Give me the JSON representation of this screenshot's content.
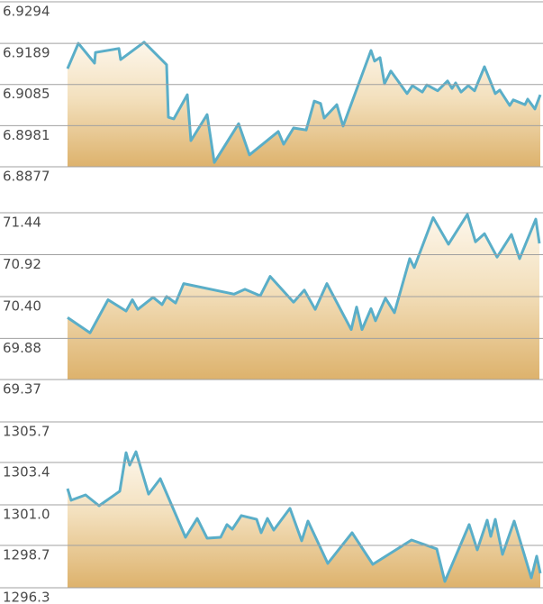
{
  "chart_data": [
    {
      "type": "area",
      "x": [
        0,
        12,
        30,
        31,
        57,
        59,
        85,
        110,
        112,
        118,
        133,
        137,
        155,
        163,
        190,
        202,
        234,
        240,
        251,
        265,
        274,
        281,
        285,
        299,
        306,
        337,
        341,
        347,
        352,
        359,
        377,
        383,
        394,
        399,
        411,
        422,
        427,
        431,
        437,
        445,
        452,
        463,
        475,
        480,
        491,
        495,
        508,
        511,
        519,
        525
      ],
      "values": [
        6.9125,
        6.9189,
        6.9139,
        6.9166,
        6.9176,
        6.9148,
        6.9192,
        6.9135,
        6.9002,
        6.8998,
        6.9059,
        6.8943,
        6.9009,
        6.8888,
        6.8986,
        6.8907,
        6.8966,
        6.8934,
        6.8975,
        6.897,
        6.9043,
        6.9037,
        6.9,
        6.9034,
        6.898,
        6.9171,
        6.9144,
        6.9153,
        6.9087,
        6.9119,
        6.9062,
        6.9082,
        6.9066,
        6.9084,
        6.9069,
        6.9094,
        6.9075,
        6.9089,
        6.9066,
        6.9082,
        6.9069,
        6.913,
        6.9062,
        6.9071,
        6.9032,
        6.9046,
        6.9034,
        6.9048,
        6.9023,
        6.9059
      ],
      "color": "#5aaec8",
      "xlim": [
        0,
        525
      ],
      "ylim": [
        6.8877,
        6.9294
      ],
      "yticks": [
        6.9294,
        6.9189,
        6.9085,
        6.8981,
        6.8877
      ],
      "grid": true
    },
    {
      "type": "area",
      "x": [
        0,
        25,
        45,
        65,
        72,
        78,
        95,
        105,
        110,
        120,
        129,
        185,
        197,
        214,
        225,
        251,
        263,
        275,
        288,
        315,
        321,
        327,
        337,
        342,
        353,
        363,
        380,
        385,
        406,
        423,
        444,
        453,
        463,
        477,
        493,
        502,
        520,
        524
      ],
      "values": [
        70.14,
        69.95,
        70.36,
        70.22,
        70.36,
        70.24,
        70.39,
        70.3,
        70.4,
        70.32,
        70.56,
        70.43,
        70.49,
        70.41,
        70.65,
        70.33,
        70.48,
        70.24,
        70.56,
        69.99,
        70.27,
        69.99,
        70.25,
        70.1,
        70.38,
        70.2,
        70.87,
        70.76,
        71.38,
        71.05,
        71.42,
        71.08,
        71.18,
        70.89,
        71.17,
        70.87,
        71.36,
        71.06
      ],
      "color": "#5aaec8",
      "xlim": [
        0,
        525
      ],
      "ylim": [
        69.37,
        71.44
      ],
      "yticks": [
        71.44,
        70.92,
        {
          "value": 70.4,
          "label": "70.40"
        },
        69.88,
        69.37
      ],
      "grid": true
    },
    {
      "type": "area",
      "x": [
        0,
        4,
        20,
        35,
        58,
        65,
        69,
        76,
        90,
        103,
        131,
        144,
        155,
        170,
        177,
        183,
        193,
        210,
        215,
        222,
        229,
        247,
        260,
        267,
        289,
        316,
        339,
        382,
        410,
        419,
        446,
        455,
        466,
        470,
        475,
        483,
        496,
        515,
        521,
        525
      ],
      "values": [
        1301.92,
        1301.26,
        1301.56,
        1300.95,
        1301.77,
        1303.96,
        1303.25,
        1304.01,
        1301.61,
        1302.48,
        1299.16,
        1300.23,
        1299.11,
        1299.16,
        1299.88,
        1299.62,
        1300.39,
        1300.18,
        1299.42,
        1300.23,
        1299.57,
        1300.8,
        1298.96,
        1300.08,
        1297.68,
        1299.42,
        1297.63,
        1299.01,
        1298.5,
        1296.66,
        1299.88,
        1298.45,
        1300.13,
        1299.21,
        1300.18,
        1298.19,
        1300.08,
        1296.86,
        1298.09,
        1297.12
      ],
      "color": "#5aaec8",
      "xlim": [
        0,
        525
      ],
      "ylim": [
        1296.3,
        1305.7
      ],
      "yticks": [
        1305.7,
        1303.4,
        {
          "value": 1301.0,
          "label": "1301.0"
        },
        1298.7,
        1296.3
      ],
      "grid": true
    }
  ]
}
